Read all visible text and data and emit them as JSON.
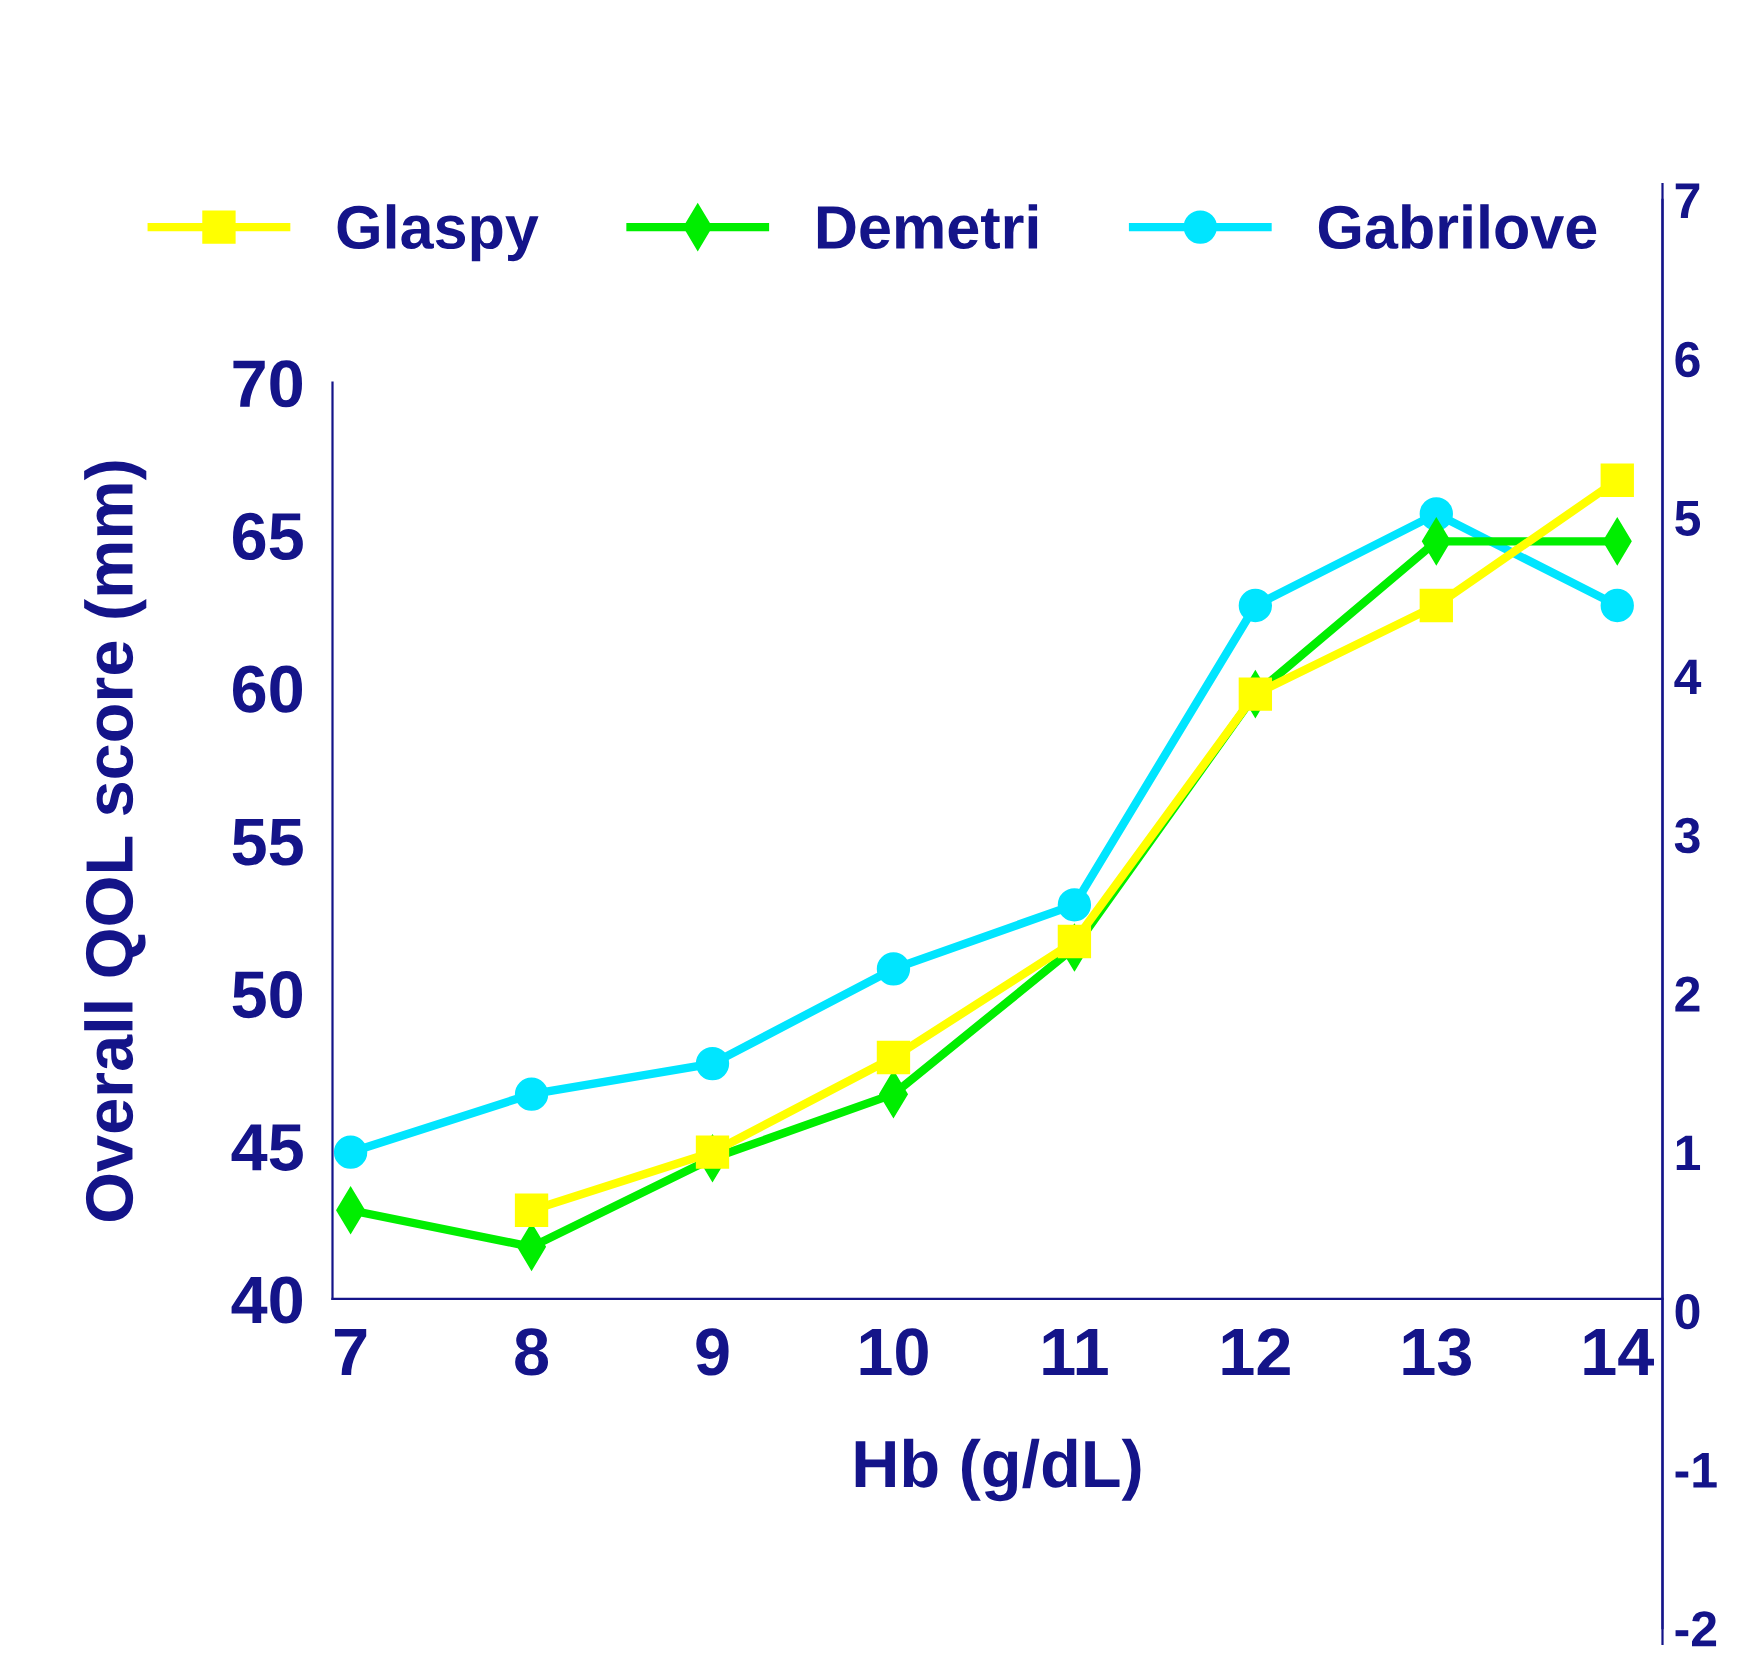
{
  "chart_data": {
    "type": "line",
    "xlabel": "Hb (g/dL)",
    "ylabel": "Overall QOL score (mm)",
    "x": [
      7,
      8,
      9,
      10,
      11,
      12,
      13,
      14
    ],
    "xlim": [
      6.9,
      14.25
    ],
    "xticks": [
      7,
      8,
      9,
      10,
      11,
      12,
      13,
      14
    ],
    "ylim": [
      28.7,
      76.5
    ],
    "yticks": [
      40,
      45,
      50,
      55,
      60,
      65,
      70
    ],
    "y2lim": [
      -2.1,
      7.1
    ],
    "y2ticks": [
      -2,
      -1,
      0,
      1,
      2,
      3,
      4,
      5,
      6,
      7
    ],
    "legend": "top",
    "grid": false,
    "line_style": "solid",
    "series": [
      {
        "name": "Glaspy",
        "color": "#ffff00",
        "marker": "square",
        "values": [
          null,
          42.9,
          44.8,
          47.9,
          51.7,
          59.8,
          62.7,
          66.8
        ]
      },
      {
        "name": "Demetri",
        "color": "#00ee00",
        "marker": "diamond",
        "values": [
          42.9,
          41.7,
          44.6,
          46.7,
          51.5,
          59.8,
          64.8,
          64.8
        ]
      },
      {
        "name": "Gabrilove",
        "color": "#00e5ff",
        "marker": "circle",
        "values": [
          44.8,
          46.7,
          47.7,
          50.8,
          52.9,
          62.7,
          65.7,
          62.7
        ]
      }
    ]
  }
}
